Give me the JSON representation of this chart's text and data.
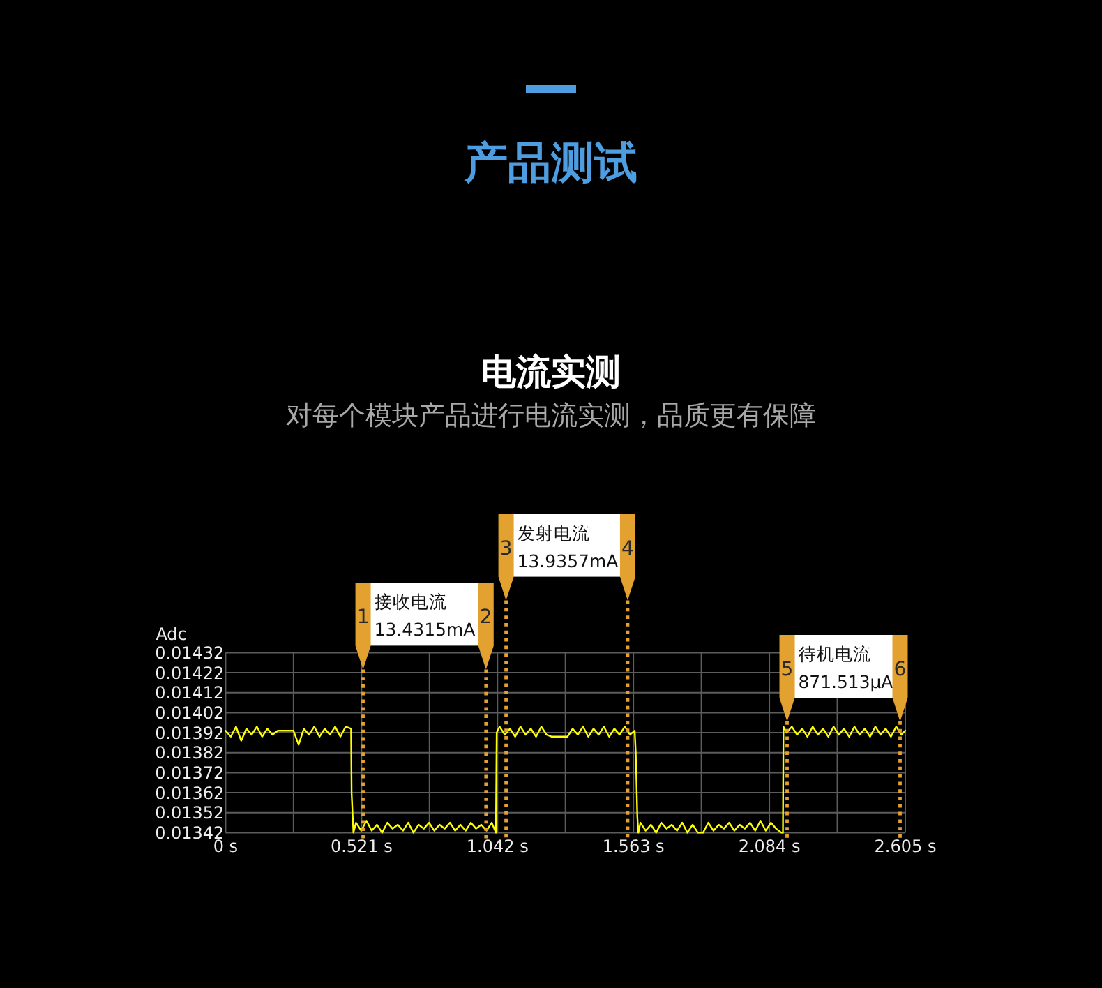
{
  "chart_data": {
    "type": "line",
    "title": "产品测试",
    "subtitle": "电流实测",
    "annotations": [
      "对每个模块产品进行电流实测，品质更有保障",
      "1",
      "接收电流 13.4315mA",
      "2",
      "3",
      "发射电流 13.9357mA",
      "4",
      "5",
      "待机电流 871.513µA",
      "6"
    ],
    "ylabel": "Adc",
    "x": [
      0,
      0.02,
      0.04,
      0.06,
      0.08,
      0.1,
      0.12,
      0.14,
      0.16,
      0.18,
      0.2,
      0.26,
      0.28,
      0.3,
      0.32,
      0.34,
      0.36,
      0.38,
      0.4,
      0.42,
      0.44,
      0.46,
      0.481,
      0.483,
      0.49,
      0.5,
      0.52,
      0.54,
      0.56,
      0.58,
      0.6,
      0.62,
      0.64,
      0.66,
      0.68,
      0.7,
      0.72,
      0.74,
      0.76,
      0.78,
      0.8,
      0.82,
      0.84,
      0.86,
      0.88,
      0.9,
      0.92,
      0.94,
      0.96,
      0.98,
      1.0,
      1.02,
      1.036,
      1.039,
      1.05,
      1.07,
      1.09,
      1.11,
      1.13,
      1.15,
      1.17,
      1.19,
      1.21,
      1.23,
      1.25,
      1.31,
      1.33,
      1.35,
      1.37,
      1.39,
      1.41,
      1.43,
      1.45,
      1.47,
      1.49,
      1.51,
      1.53,
      1.55,
      1.568,
      1.572,
      1.578,
      1.582,
      1.59,
      1.61,
      1.63,
      1.65,
      1.67,
      1.69,
      1.71,
      1.73,
      1.75,
      1.77,
      1.79,
      1.81,
      1.83,
      1.85,
      1.87,
      1.89,
      1.91,
      1.93,
      1.95,
      1.97,
      1.99,
      2.01,
      2.03,
      2.05,
      2.07,
      2.09,
      2.11,
      2.13,
      2.136,
      2.138,
      2.15,
      2.17,
      2.19,
      2.21,
      2.23,
      2.25,
      2.27,
      2.29,
      2.31,
      2.33,
      2.35,
      2.37,
      2.39,
      2.41,
      2.43,
      2.45,
      2.47,
      2.49,
      2.51,
      2.53,
      2.55,
      2.57,
      2.59,
      2.605
    ],
    "series": [
      {
        "color": "#ffff00",
        "values": [
          0.01393,
          0.0139,
          0.01395,
          0.01388,
          0.01394,
          0.01391,
          0.01395,
          0.0139,
          0.01394,
          0.01391,
          0.01393,
          0.01393,
          0.01386,
          0.01394,
          0.01391,
          0.01395,
          0.0139,
          0.01394,
          0.01391,
          0.01395,
          0.0139,
          0.01395,
          0.01394,
          0.01362,
          0.01342,
          0.01347,
          0.01343,
          0.01348,
          0.01343,
          0.01346,
          0.01342,
          0.01347,
          0.01344,
          0.01346,
          0.01343,
          0.01347,
          0.01342,
          0.01346,
          0.01344,
          0.01347,
          0.01343,
          0.01346,
          0.01344,
          0.01347,
          0.01343,
          0.01346,
          0.01343,
          0.01347,
          0.01344,
          0.01346,
          0.01343,
          0.01347,
          0.01342,
          0.01392,
          0.01395,
          0.01391,
          0.01394,
          0.0139,
          0.01395,
          0.01391,
          0.01394,
          0.0139,
          0.01395,
          0.01391,
          0.0139,
          0.0139,
          0.01394,
          0.01391,
          0.01395,
          0.0139,
          0.01394,
          0.01391,
          0.01395,
          0.0139,
          0.01394,
          0.01391,
          0.01395,
          0.01391,
          0.01393,
          0.01382,
          0.0135,
          0.01342,
          0.01347,
          0.01343,
          0.01346,
          0.01342,
          0.01347,
          0.01344,
          0.01346,
          0.01343,
          0.01347,
          0.01342,
          0.01346,
          0.01342,
          0.01342,
          0.01347,
          0.01343,
          0.01346,
          0.01344,
          0.01347,
          0.01343,
          0.01346,
          0.01344,
          0.01347,
          0.01343,
          0.01348,
          0.01343,
          0.01347,
          0.01344,
          0.01342,
          0.01342,
          0.01395,
          0.01392,
          0.01395,
          0.01391,
          0.01394,
          0.0139,
          0.01395,
          0.01391,
          0.01394,
          0.0139,
          0.01395,
          0.01391,
          0.01394,
          0.0139,
          0.01395,
          0.01391,
          0.01394,
          0.0139,
          0.01395,
          0.01391,
          0.01394,
          0.0139,
          0.01395,
          0.01391,
          0.01393
        ]
      }
    ],
    "xlim": [
      0,
      2.605
    ],
    "ylim": [
      0.01342,
      0.01432
    ],
    "xticks": [
      {
        "value": 0,
        "label": "0 s"
      },
      {
        "value": 0.2605,
        "label": null
      },
      {
        "value": 0.521,
        "label": "0.521 s"
      },
      {
        "value": 0.7815,
        "label": null
      },
      {
        "value": 1.042,
        "label": "1.042 s"
      },
      {
        "value": 1.3025,
        "label": null
      },
      {
        "value": 1.563,
        "label": "1.563 s"
      },
      {
        "value": 1.8235,
        "label": null
      },
      {
        "value": 2.084,
        "label": "2.084 s"
      },
      {
        "value": 2.3445,
        "label": null
      },
      {
        "value": 2.605,
        "label": "2.605 s"
      }
    ],
    "yticks": [
      0.01342,
      0.01352,
      0.01362,
      0.01372,
      0.01382,
      0.01392,
      0.01402,
      0.01412,
      0.01422,
      0.01432
    ],
    "grid": true,
    "line_style": "solid",
    "ref_lines": [
      {
        "axis": "x",
        "value": 0.527,
        "color": "#e3a12f",
        "line_style": "dotted"
      },
      {
        "axis": "x",
        "value": 0.998,
        "color": "#e3a12f",
        "line_style": "dotted"
      },
      {
        "axis": "x",
        "value": 1.075,
        "color": "#e3a12f",
        "line_style": "dotted"
      },
      {
        "axis": "x",
        "value": 1.541,
        "color": "#e3a12f",
        "line_style": "dotted"
      },
      {
        "axis": "x",
        "value": 2.152,
        "color": "#e3a12f",
        "line_style": "dotted"
      },
      {
        "axis": "x",
        "value": 2.585,
        "color": "#e3a12f",
        "line_style": "dotted"
      }
    ]
  }
}
